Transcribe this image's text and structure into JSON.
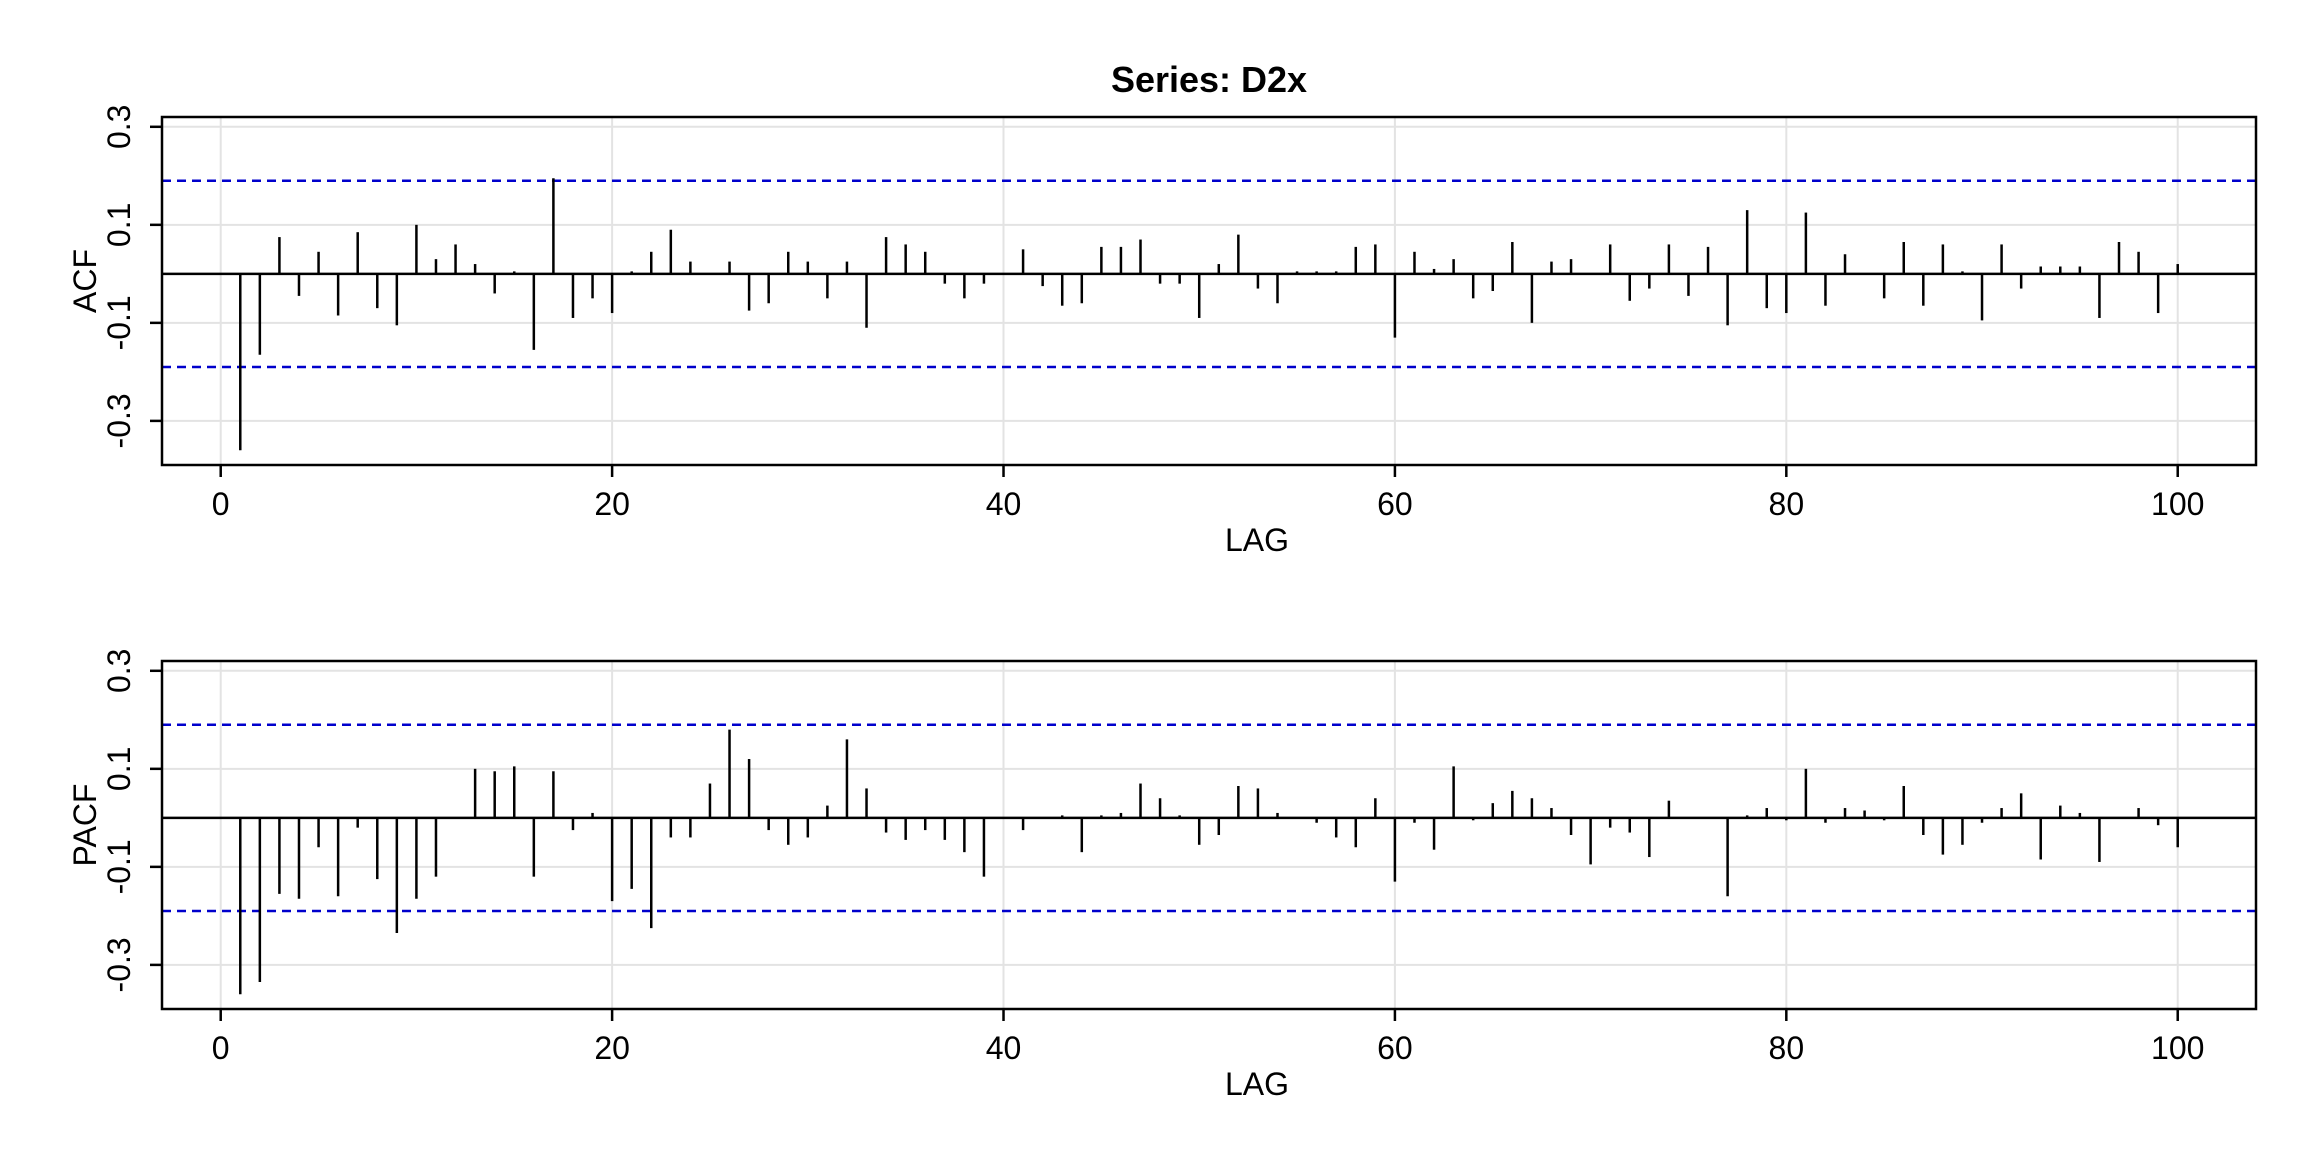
{
  "chart_data": [
    {
      "type": "bar",
      "title": "Series:  D2x",
      "xlabel": "LAG",
      "ylabel": "ACF",
      "xlim": [
        -3,
        104
      ],
      "ylim": [
        -0.39,
        0.32
      ],
      "xticks": [
        0,
        20,
        40,
        60,
        80,
        100
      ],
      "xtick_labels": [
        "0",
        "20",
        "40",
        "60",
        "80",
        "100"
      ],
      "yticks": [
        -0.3,
        -0.1,
        0.1,
        0.3
      ],
      "ytick_labels": [
        "-0.3",
        "-0.1",
        "0.1",
        "0.3"
      ],
      "grid": true,
      "confidence_bound": 0.19,
      "baseline_color": "#000000",
      "bar_color": "#000000",
      "bound_color": "#0000cc",
      "x": [
        1,
        2,
        3,
        4,
        5,
        6,
        7,
        8,
        9,
        10,
        11,
        12,
        13,
        14,
        15,
        16,
        17,
        18,
        19,
        20,
        21,
        22,
        23,
        24,
        25,
        26,
        27,
        28,
        29,
        30,
        31,
        32,
        33,
        34,
        35,
        36,
        37,
        38,
        39,
        40,
        41,
        42,
        43,
        44,
        45,
        46,
        47,
        48,
        49,
        50,
        51,
        52,
        53,
        54,
        55,
        56,
        57,
        58,
        59,
        60,
        61,
        62,
        63,
        64,
        65,
        66,
        67,
        68,
        69,
        70,
        71,
        72,
        73,
        74,
        75,
        76,
        77,
        78,
        79,
        80,
        81,
        82,
        83,
        84,
        85,
        86,
        87,
        88,
        89,
        90,
        91,
        92,
        93,
        94,
        95,
        96,
        97,
        98,
        99,
        100
      ],
      "values": [
        -0.36,
        -0.165,
        0.075,
        -0.045,
        0.045,
        -0.085,
        0.085,
        -0.07,
        -0.105,
        0.1,
        0.03,
        0.06,
        0.02,
        -0.04,
        0.005,
        -0.155,
        0.195,
        -0.09,
        -0.05,
        -0.08,
        0.005,
        0.045,
        0.09,
        0.025,
        0.0,
        0.025,
        -0.075,
        -0.06,
        0.045,
        0.025,
        -0.05,
        0.025,
        -0.11,
        0.075,
        0.06,
        0.045,
        -0.02,
        -0.05,
        -0.02,
        0.0,
        0.05,
        -0.025,
        -0.065,
        -0.06,
        0.055,
        0.055,
        0.07,
        -0.02,
        -0.02,
        -0.09,
        0.02,
        0.08,
        -0.03,
        -0.06,
        0.005,
        0.005,
        0.005,
        0.055,
        0.06,
        -0.13,
        0.045,
        0.01,
        0.03,
        -0.05,
        -0.035,
        0.065,
        -0.1,
        0.025,
        0.03,
        0.0,
        0.06,
        -0.055,
        -0.03,
        0.06,
        -0.045,
        0.055,
        -0.105,
        0.13,
        -0.07,
        -0.08,
        0.125,
        -0.065,
        0.04,
        0.0,
        -0.05,
        0.065,
        -0.065,
        0.06,
        0.005,
        -0.095,
        0.06,
        -0.03,
        0.015,
        0.015,
        0.015,
        -0.09,
        0.065,
        0.045,
        -0.08,
        0.02
      ]
    },
    {
      "type": "bar",
      "title": "",
      "xlabel": "LAG",
      "ylabel": "PACF",
      "xlim": [
        -3,
        104
      ],
      "ylim": [
        -0.39,
        0.32
      ],
      "xticks": [
        0,
        20,
        40,
        60,
        80,
        100
      ],
      "xtick_labels": [
        "0",
        "20",
        "40",
        "60",
        "80",
        "100"
      ],
      "yticks": [
        -0.3,
        -0.1,
        0.1,
        0.3
      ],
      "ytick_labels": [
        "-0.3",
        "-0.1",
        "0.1",
        "0.3"
      ],
      "grid": true,
      "confidence_bound": 0.19,
      "baseline_color": "#000000",
      "bar_color": "#000000",
      "bound_color": "#0000cc",
      "x": [
        1,
        2,
        3,
        4,
        5,
        6,
        7,
        8,
        9,
        10,
        11,
        12,
        13,
        14,
        15,
        16,
        17,
        18,
        19,
        20,
        21,
        22,
        23,
        24,
        25,
        26,
        27,
        28,
        29,
        30,
        31,
        32,
        33,
        34,
        35,
        36,
        37,
        38,
        39,
        40,
        41,
        42,
        43,
        44,
        45,
        46,
        47,
        48,
        49,
        50,
        51,
        52,
        53,
        54,
        55,
        56,
        57,
        58,
        59,
        60,
        61,
        62,
        63,
        64,
        65,
        66,
        67,
        68,
        69,
        70,
        71,
        72,
        73,
        74,
        75,
        76,
        77,
        78,
        79,
        80,
        81,
        82,
        83,
        84,
        85,
        86,
        87,
        88,
        89,
        90,
        91,
        92,
        93,
        94,
        95,
        96,
        97,
        98,
        99,
        100
      ],
      "values": [
        -0.36,
        -0.335,
        -0.155,
        -0.165,
        -0.06,
        -0.16,
        -0.02,
        -0.125,
        -0.235,
        -0.165,
        -0.12,
        0.0,
        0.1,
        0.095,
        0.105,
        -0.12,
        0.095,
        -0.025,
        0.01,
        -0.17,
        -0.145,
        -0.225,
        -0.04,
        -0.04,
        0.07,
        0.18,
        0.12,
        -0.025,
        -0.055,
        -0.04,
        0.025,
        0.16,
        0.06,
        -0.03,
        -0.045,
        -0.025,
        -0.045,
        -0.07,
        -0.12,
        0.0,
        -0.025,
        0.0,
        0.005,
        -0.07,
        0.005,
        0.01,
        0.07,
        0.04,
        0.005,
        -0.055,
        -0.035,
        0.065,
        0.06,
        0.01,
        0.0,
        -0.01,
        -0.04,
        -0.06,
        0.04,
        -0.13,
        -0.01,
        -0.065,
        0.105,
        -0.005,
        0.03,
        0.055,
        0.04,
        0.02,
        -0.035,
        -0.095,
        -0.02,
        -0.03,
        -0.08,
        0.035,
        0.0,
        0.0,
        -0.16,
        0.005,
        0.02,
        -0.005,
        0.1,
        -0.01,
        0.02,
        0.015,
        -0.005,
        0.065,
        -0.035,
        -0.075,
        -0.055,
        -0.01,
        0.02,
        0.05,
        -0.085,
        0.025,
        0.01,
        -0.09,
        0.0,
        0.02,
        -0.015,
        -0.06
      ]
    }
  ]
}
